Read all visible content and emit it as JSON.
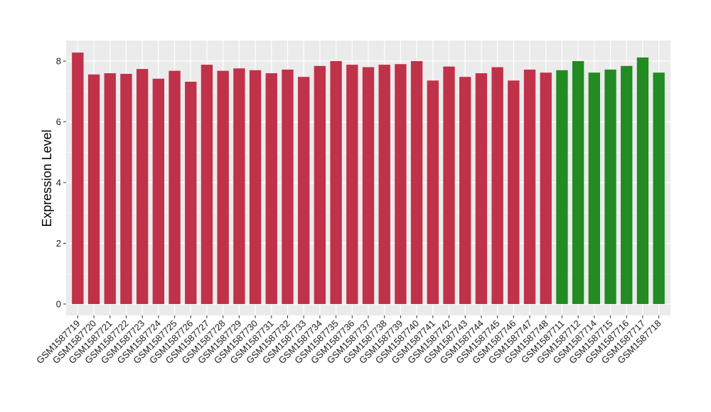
{
  "chart_data": {
    "type": "bar",
    "ylabel": "Expression Level",
    "xlabel": "",
    "ylim": [
      0,
      8.7
    ],
    "yticks": [
      0,
      2,
      4,
      6,
      8
    ],
    "grid": true,
    "colors": {
      "group_a": "#c0314a",
      "group_b": "#228b22",
      "panel_bg": "#ebebeb",
      "grid": "#ffffff"
    },
    "categories": [
      "GSM1587719",
      "GSM1587720",
      "GSM1587721",
      "GSM1587722",
      "GSM1587723",
      "GSM1587724",
      "GSM1587725",
      "GSM1587726",
      "GSM1587727",
      "GSM1587728",
      "GSM1587729",
      "GSM1587730",
      "GSM1587731",
      "GSM1587732",
      "GSM1587733",
      "GSM1587734",
      "GSM1587735",
      "GSM1587736",
      "GSM1587737",
      "GSM1587738",
      "GSM1587739",
      "GSM1587740",
      "GSM1587741",
      "GSM1587742",
      "GSM1587743",
      "GSM1587744",
      "GSM1587745",
      "GSM1587746",
      "GSM1587747",
      "GSM1587748",
      "GSM1587711",
      "GSM1587712",
      "GSM1587714",
      "GSM1587715",
      "GSM1587716",
      "GSM1587717",
      "GSM1587718"
    ],
    "values": [
      8.28,
      7.56,
      7.6,
      7.58,
      7.74,
      7.42,
      7.68,
      7.32,
      7.88,
      7.68,
      7.76,
      7.7,
      7.6,
      7.72,
      7.48,
      7.84,
      8.0,
      7.88,
      7.8,
      7.88,
      7.9,
      8.0,
      7.36,
      7.82,
      7.48,
      7.6,
      7.8,
      7.36,
      7.72,
      7.62,
      7.7,
      8.0,
      7.62,
      7.72,
      7.84,
      8.12,
      7.62
    ],
    "groups": [
      "a",
      "a",
      "a",
      "a",
      "a",
      "a",
      "a",
      "a",
      "a",
      "a",
      "a",
      "a",
      "a",
      "a",
      "a",
      "a",
      "a",
      "a",
      "a",
      "a",
      "a",
      "a",
      "a",
      "a",
      "a",
      "a",
      "a",
      "a",
      "a",
      "a",
      "b",
      "b",
      "b",
      "b",
      "b",
      "b",
      "b"
    ]
  }
}
